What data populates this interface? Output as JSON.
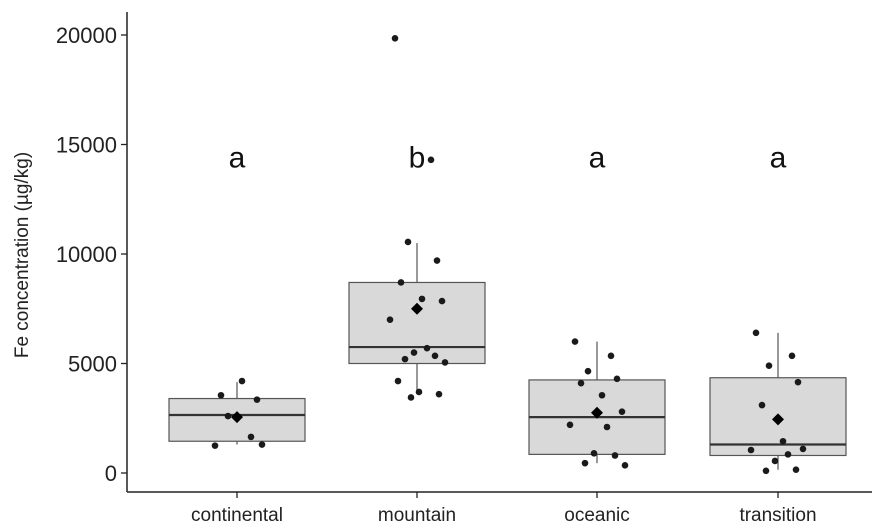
{
  "chart_data": {
    "type": "box",
    "ylabel": "Fe concentration (µg/kg)",
    "xlabel": "",
    "ylim": [
      -800,
      20800
    ],
    "yticks": [
      0,
      5000,
      10000,
      15000,
      20000
    ],
    "categories": [
      "continental",
      "mountain",
      "oceanic",
      "transition"
    ],
    "group_letters": [
      "a",
      "b",
      "a",
      "a"
    ],
    "letter_y": 14500,
    "colors": {
      "box_fill": "#d9d9d9",
      "box_stroke": "#555555",
      "median": "#333333",
      "point": "#1a1a1a",
      "mean": "#000000",
      "axis": "#222222"
    },
    "grid": false,
    "legend": "none",
    "boxes": [
      {
        "category": "continental",
        "q1": 1450,
        "median": 2650,
        "q3": 3400,
        "whisker_low": 1300,
        "whisker_high": 4150,
        "mean": 2550
      },
      {
        "category": "mountain",
        "q1": 5000,
        "median": 5750,
        "q3": 8700,
        "whisker_low": 3600,
        "whisker_high": 10500,
        "mean": 7500
      },
      {
        "category": "oceanic",
        "q1": 850,
        "median": 2550,
        "q3": 4250,
        "whisker_low": 450,
        "whisker_high": 6000,
        "mean": 2750
      },
      {
        "category": "transition",
        "q1": 800,
        "median": 1300,
        "q3": 4350,
        "whisker_low": 150,
        "whisker_high": 6400,
        "mean": 2450
      }
    ],
    "points": [
      {
        "category": "continental",
        "values": [
          1250,
          1650,
          2600,
          3350,
          3550,
          4200,
          1300
        ]
      },
      {
        "category": "mountain",
        "values": [
          19850,
          14300,
          10550,
          9700,
          8700,
          7950,
          7850,
          7000,
          5700,
          5500,
          5350,
          5200,
          5050,
          4200,
          3700,
          3600,
          3450
        ]
      },
      {
        "category": "oceanic",
        "values": [
          6000,
          5350,
          4650,
          4300,
          4100,
          3550,
          2800,
          2200,
          2100,
          900,
          800,
          450,
          350
        ]
      },
      {
        "category": "transition",
        "values": [
          6400,
          5350,
          4900,
          4150,
          3100,
          1450,
          1100,
          1050,
          850,
          550,
          150,
          100
        ]
      }
    ]
  }
}
